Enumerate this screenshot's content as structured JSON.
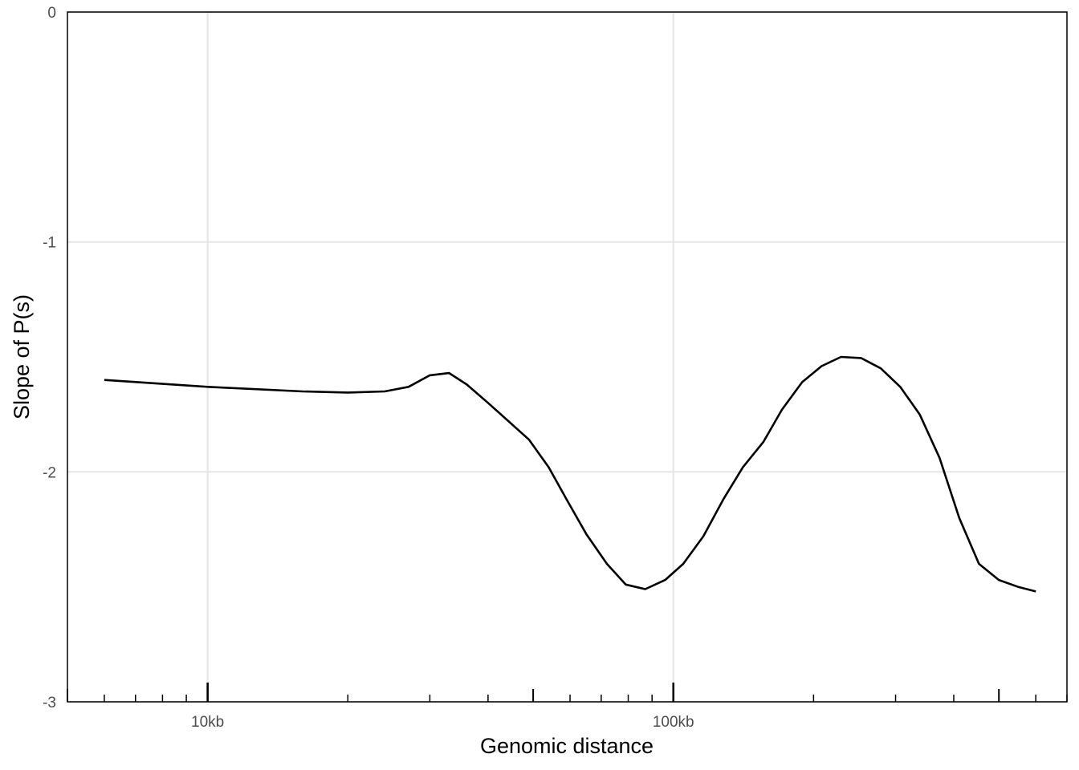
{
  "chart_data": {
    "type": "line",
    "title": "",
    "xlabel": "Genomic distance",
    "ylabel": "Slope of P(s)",
    "x_scale": "log10",
    "xlim": [
      5000,
      700000
    ],
    "ylim": [
      -3,
      0
    ],
    "x_ticks": [
      {
        "value": 10000,
        "label": "10kb"
      },
      {
        "value": 100000,
        "label": "100kb"
      }
    ],
    "y_ticks": [
      {
        "value": 0,
        "label": "0"
      },
      {
        "value": -1,
        "label": "-1"
      },
      {
        "value": -2,
        "label": "-2"
      },
      {
        "value": -3,
        "label": "-3"
      }
    ],
    "grid": true,
    "series": [
      {
        "color": "#000000",
        "x": [
          6000,
          10000,
          16000,
          20000,
          24000,
          27000,
          30000,
          33000,
          36000,
          40000,
          49000,
          54000,
          59000,
          65000,
          72000,
          79000,
          87000,
          96000,
          105000,
          116000,
          128000,
          141000,
          156000,
          171000,
          189000,
          208000,
          229000,
          253000,
          279000,
          307000,
          338000,
          373000,
          411000,
          453000,
          500000,
          550000,
          600000
        ],
        "y": [
          -1.6,
          -1.63,
          -1.65,
          -1.655,
          -1.65,
          -1.63,
          -1.58,
          -1.57,
          -1.62,
          -1.7,
          -1.86,
          -1.98,
          -2.12,
          -2.27,
          -2.4,
          -2.49,
          -2.51,
          -2.47,
          -2.4,
          -2.28,
          -2.12,
          -1.98,
          -1.87,
          -1.73,
          -1.61,
          -1.54,
          -1.5,
          -1.505,
          -1.55,
          -1.63,
          -1.75,
          -1.94,
          -2.2,
          -2.4,
          -2.47,
          -2.5,
          -2.52
        ]
      }
    ]
  }
}
